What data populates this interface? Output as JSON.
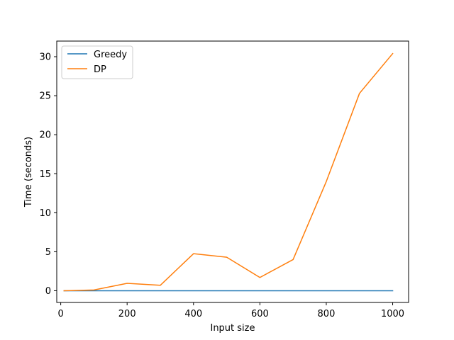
{
  "chart_data": {
    "type": "line",
    "title": "",
    "xlabel": "Input size",
    "ylabel": "Time (seconds)",
    "xlim": [
      -12,
      1048
    ],
    "ylim": [
      -1.5,
      32.0
    ],
    "xticks": [
      0,
      200,
      400,
      600,
      800,
      1000
    ],
    "yticks": [
      0,
      5,
      10,
      15,
      20,
      25,
      30
    ],
    "grid": false,
    "legend": "top-left",
    "x": [
      10,
      100,
      200,
      300,
      400,
      500,
      600,
      700,
      800,
      900,
      1000
    ],
    "series": [
      {
        "name": "Greedy",
        "color": "#1f77b4",
        "values": [
          0.0,
          0.0,
          0.0,
          0.0,
          0.0,
          0.0,
          0.0,
          0.0,
          0.0,
          0.0,
          0.0
        ]
      },
      {
        "name": "DP",
        "color": "#ff7f0e",
        "values": [
          0.0,
          0.1,
          0.95,
          0.7,
          4.75,
          4.3,
          1.7,
          4.0,
          14.0,
          25.3,
          30.4
        ]
      }
    ]
  }
}
